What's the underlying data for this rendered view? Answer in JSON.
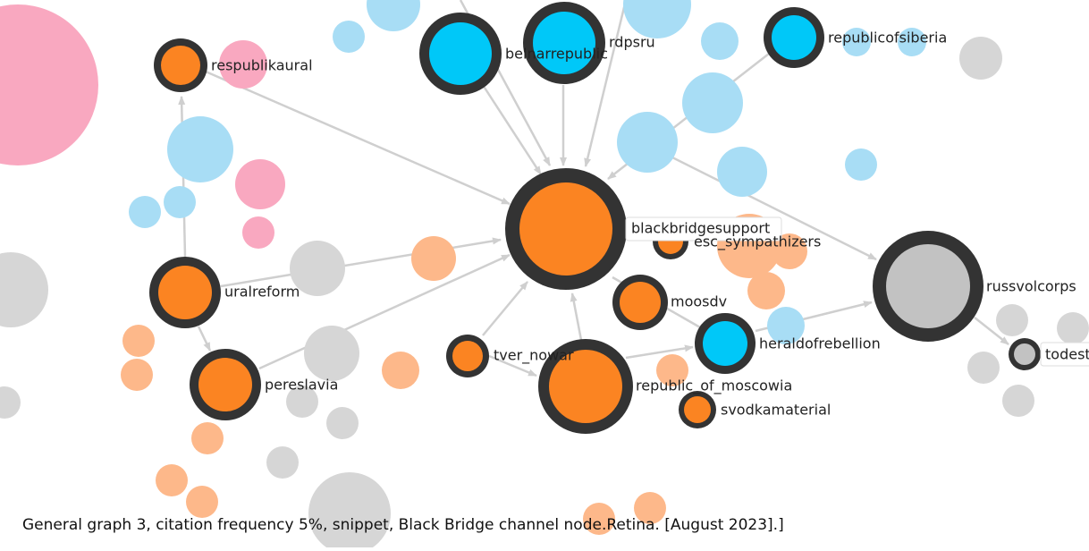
{
  "nodes": [
    {
      "label": "respublikaural"
    },
    {
      "label": "belnarrepublic"
    },
    {
      "label": "rdpsru"
    },
    {
      "label": "republicofsiberia"
    },
    {
      "label": "blackbridgesupport"
    },
    {
      "label": "esc_sympathizers"
    },
    {
      "label": "uralreform"
    },
    {
      "label": "moosdv"
    },
    {
      "label": "russvolcorps"
    },
    {
      "label": "tver_nowar"
    },
    {
      "label": "heraldofrebellion"
    },
    {
      "label": "pereslavia"
    },
    {
      "label": "republic_of_moscowia"
    },
    {
      "label": "svodkamaterial"
    },
    {
      "label": "todest"
    }
  ],
  "caption": "General graph 3, citation frequency 5%, snippet, Black Bridge channel node.Retina. [August 2023].]"
}
